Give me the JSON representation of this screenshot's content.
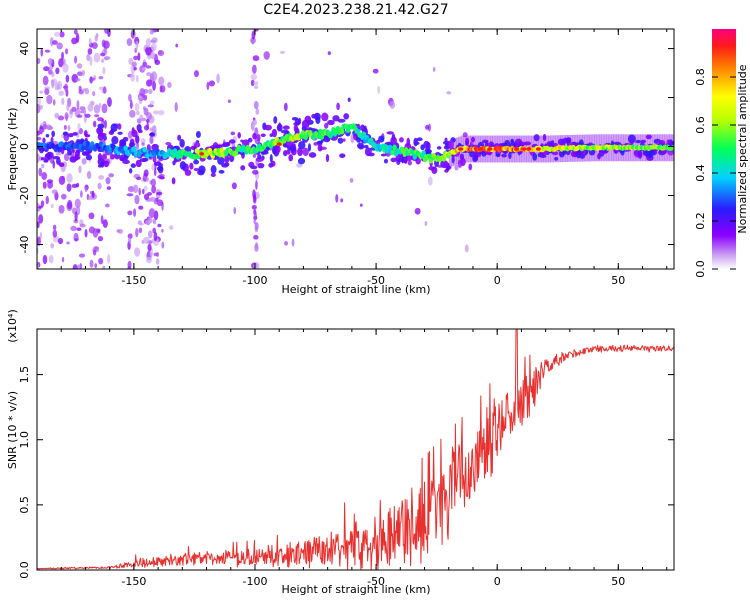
{
  "title": "C2E4.2023.238.21.42.G27",
  "colors": {
    "snr_line": "#e8302e",
    "background": "#ffffff"
  },
  "chart_data": [
    {
      "type": "heatmap",
      "xlabel": "Height of straight line (km)",
      "ylabel": "Frequency (Hz)",
      "xlim": [
        -190,
        73
      ],
      "ylim": [
        -50,
        48
      ],
      "xticks": [
        "-150",
        "-100",
        "-50",
        "0",
        "50"
      ],
      "yticks": [
        "40",
        "20",
        "0",
        "-20",
        "-40"
      ],
      "colorbar": {
        "label": "Normalized spectral amplitude",
        "range": [
          0,
          1
        ],
        "ticks": [
          "0.0",
          "0.2",
          "0.4",
          "0.6",
          "0.8"
        ],
        "colormap": "rainbow (white-violet-blue-cyan-green-yellow-orange-red-magenta)"
      },
      "ridge": {
        "height_km": [
          -190,
          -165,
          -150,
          -140,
          -130,
          -120,
          -110,
          -100,
          -90,
          -80,
          -70,
          -60,
          -55,
          -50,
          -40,
          -30,
          -25,
          -20,
          -15,
          -10,
          0,
          10,
          20,
          40,
          73
        ],
        "frequency_hz": [
          0,
          0,
          -2,
          -3,
          -3,
          -3,
          -2,
          -1,
          2,
          5,
          5,
          8,
          4,
          0,
          -2,
          -4,
          -5,
          -3,
          -1,
          -1,
          -1,
          -1,
          -1,
          -0.5,
          -0.5
        ],
        "amplitude": [
          0.3,
          0.3,
          0.4,
          0.35,
          0.55,
          0.7,
          0.55,
          0.5,
          0.6,
          0.6,
          0.55,
          0.5,
          0.45,
          0.45,
          0.5,
          0.55,
          0.6,
          0.7,
          0.85,
          0.9,
          0.9,
          0.9,
          0.75,
          0.65,
          0.62
        ]
      }
    },
    {
      "type": "line",
      "xlabel": "Height of straight line (km)",
      "ylabel": "SNR (10 * v/v)",
      "scale_label": "(x10⁴)",
      "xlim": [
        -190,
        73
      ],
      "ylim": [
        0,
        1.85
      ],
      "xticks": [
        "-150",
        "-100",
        "-50",
        "0",
        "50"
      ],
      "yticks": [
        "0.0",
        "0.5",
        "1.0",
        "1.5"
      ],
      "envelope": {
        "height_km": [
          -190,
          -160,
          -150,
          -130,
          -100,
          -80,
          -60,
          -50,
          -30,
          -20,
          -10,
          0,
          5,
          15,
          20,
          30,
          40,
          50,
          73
        ],
        "snr": [
          0.01,
          0.02,
          0.05,
          0.08,
          0.1,
          0.12,
          0.2,
          0.25,
          0.35,
          0.55,
          0.8,
          1.05,
          1.2,
          1.4,
          1.55,
          1.65,
          1.7,
          1.7,
          1.7
        ],
        "fluctuation": [
          0.005,
          0.01,
          0.04,
          0.06,
          0.08,
          0.12,
          0.22,
          0.3,
          0.4,
          0.4,
          0.35,
          0.35,
          0.3,
          0.2,
          0.08,
          0.05,
          0.03,
          0.03,
          0.03
        ]
      }
    }
  ]
}
